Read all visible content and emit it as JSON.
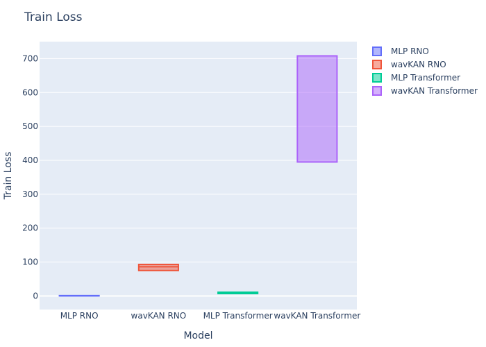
{
  "chart_data": {
    "type": "box",
    "title": "Train Loss",
    "xlabel": "Model",
    "ylabel": "Train Loss",
    "ylim": [
      -40,
      750
    ],
    "yticks": [
      0,
      100,
      200,
      300,
      400,
      500,
      600,
      700
    ],
    "grid": true,
    "legend_position": "top-right",
    "categories": [
      "MLP RNO",
      "wavKAN RNO",
      "MLP Transformer",
      "wavKAN Transformer"
    ],
    "series": [
      {
        "name": "MLP RNO",
        "color": "#636efa",
        "fill": "rgba(99,110,250,0.5)",
        "box": {
          "min": 0.5,
          "q1": 0.5,
          "median": 0.8,
          "q3": 1.2,
          "max": 1.5
        }
      },
      {
        "name": "wavKAN RNO",
        "color": "#ef553b",
        "fill": "rgba(239,85,59,0.5)",
        "box": {
          "min": 75,
          "q1": 75,
          "median": 86,
          "q3": 93,
          "max": 93
        }
      },
      {
        "name": "MLP Transformer",
        "color": "#00cc96",
        "fill": "rgba(0,204,150,0.5)",
        "box": {
          "min": 7,
          "q1": 7,
          "median": 10,
          "q3": 11,
          "max": 12
        }
      },
      {
        "name": "wavKAN Transformer",
        "color": "#ab63fa",
        "fill": "rgba(171,99,250,0.5)",
        "box": {
          "min": 395,
          "q1": 395,
          "median": 708,
          "q3": 708,
          "max": 710
        }
      }
    ]
  }
}
